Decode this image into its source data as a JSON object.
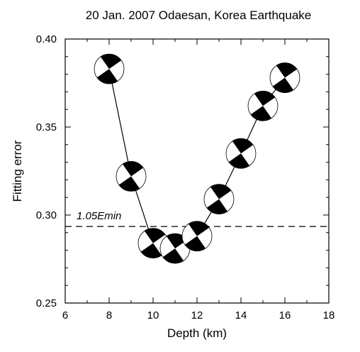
{
  "chart_data": {
    "type": "line",
    "title": "20 Jan. 2007 Odaesan, Korea Earthquake",
    "xlabel": "Depth (km)",
    "ylabel": "Fitting error",
    "xlim": [
      6,
      18
    ],
    "ylim": [
      0.25,
      0.4
    ],
    "xticks": [
      "6",
      "8",
      "10",
      "12",
      "14",
      "16",
      "18"
    ],
    "yticks": [
      "0.25",
      "0.30",
      "0.35",
      "0.40"
    ],
    "grid": false,
    "series": [
      {
        "x": [
          8,
          9,
          10,
          11,
          12,
          13,
          14,
          15,
          16
        ],
        "y": [
          0.383,
          0.322,
          0.284,
          0.281,
          0.288,
          0.309,
          0.335,
          0.362,
          0.378
        ],
        "marker": "focal-mechanism-beachball"
      }
    ],
    "threshold": {
      "label": "1.05Emin",
      "y": 0.2935,
      "style": "dashed"
    },
    "colors": {
      "line": "#000000",
      "beachball_fill": "#000000",
      "background": "#ffffff"
    }
  }
}
